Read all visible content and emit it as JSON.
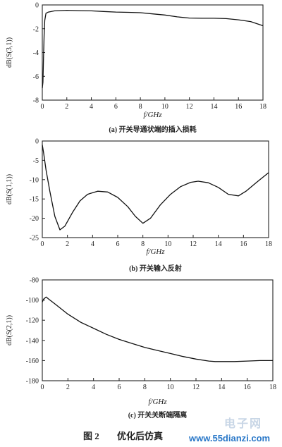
{
  "chart_data": [
    {
      "type": "line",
      "ylabel": "dB(S(3,1))",
      "xlabel": "f/GHz",
      "caption": "(a) 开关导通状端的插入损耗",
      "xlim": [
        0,
        18
      ],
      "ylim": [
        -8,
        0
      ],
      "xticks": [
        0,
        2,
        4,
        6,
        8,
        10,
        12,
        14,
        16,
        18
      ],
      "yticks": [
        0,
        -2,
        -4,
        -6,
        -8
      ],
      "grid": false,
      "series": [
        {
          "x": [
            0,
            0.05,
            0.1,
            0.15,
            0.2,
            0.3,
            0.5,
            1,
            2,
            3,
            4,
            5,
            6,
            7,
            8,
            9,
            10,
            11,
            12,
            13,
            14,
            15,
            16,
            17,
            18
          ],
          "y": [
            -7.0,
            -6.5,
            -4.5,
            -2.5,
            -1.3,
            -0.7,
            -0.6,
            -0.5,
            -0.45,
            -0.48,
            -0.5,
            -0.55,
            -0.6,
            -0.62,
            -0.65,
            -0.75,
            -0.85,
            -1.0,
            -1.1,
            -1.12,
            -1.12,
            -1.15,
            -1.25,
            -1.4,
            -1.75
          ]
        }
      ]
    },
    {
      "type": "line",
      "ylabel": "dB(S(1,1))",
      "xlabel": "f/GHz",
      "caption": "(b) 开关输入反射",
      "xlim": [
        0,
        18
      ],
      "ylim": [
        -25,
        0
      ],
      "xticks": [
        0,
        2,
        4,
        6,
        8,
        10,
        12,
        14,
        16,
        18
      ],
      "yticks": [
        0,
        -5,
        -10,
        -15,
        -20,
        -25
      ],
      "grid": false,
      "series": [
        {
          "x": [
            0,
            0.1,
            0.3,
            0.6,
            1.0,
            1.4,
            1.8,
            2.4,
            3.0,
            3.6,
            4.4,
            5.2,
            6.0,
            6.8,
            7.4,
            8.0,
            8.6,
            9.4,
            10.2,
            11.0,
            11.8,
            12.4,
            13.2,
            14.0,
            14.8,
            15.6,
            16.2,
            17.0,
            18.0
          ],
          "y": [
            -1.0,
            -3.0,
            -7.5,
            -13.0,
            -19.5,
            -23.0,
            -22.0,
            -18.5,
            -15.5,
            -13.8,
            -13.0,
            -13.2,
            -14.6,
            -17.0,
            -19.5,
            -21.3,
            -20.0,
            -16.5,
            -13.8,
            -11.8,
            -10.7,
            -10.4,
            -10.8,
            -12.0,
            -13.8,
            -14.2,
            -13.0,
            -10.8,
            -8.2
          ]
        }
      ]
    },
    {
      "type": "line",
      "ylabel": "dB(S(2,1))",
      "xlabel": "f/GHz",
      "caption": "(c) 开关关断端隔离",
      "xlim": [
        0,
        18
      ],
      "ylim": [
        -180,
        -80
      ],
      "xticks": [
        0,
        2,
        4,
        6,
        8,
        10,
        12,
        14,
        16,
        18
      ],
      "yticks": [
        -80,
        -100,
        -120,
        -140,
        -160,
        -180
      ],
      "grid": false,
      "series": [
        {
          "x": [
            0,
            0.1,
            0.3,
            0.5,
            1,
            2,
            3,
            4,
            5,
            6,
            7,
            8,
            9,
            10,
            11,
            12,
            13,
            13.5,
            14,
            15,
            16,
            17,
            18
          ],
          "y": [
            -102,
            -99,
            -97,
            -99,
            -104,
            -114,
            -122,
            -128,
            -134,
            -139,
            -143,
            -147,
            -150,
            -153,
            -156,
            -158.5,
            -160.5,
            -161,
            -161,
            -161,
            -160.5,
            -160,
            -160
          ]
        }
      ]
    }
  ],
  "figure": {
    "label": "图 2",
    "title": "优化后仿真"
  },
  "watermark": {
    "brand": "电子网",
    "url": "www.55dianzi.com"
  }
}
